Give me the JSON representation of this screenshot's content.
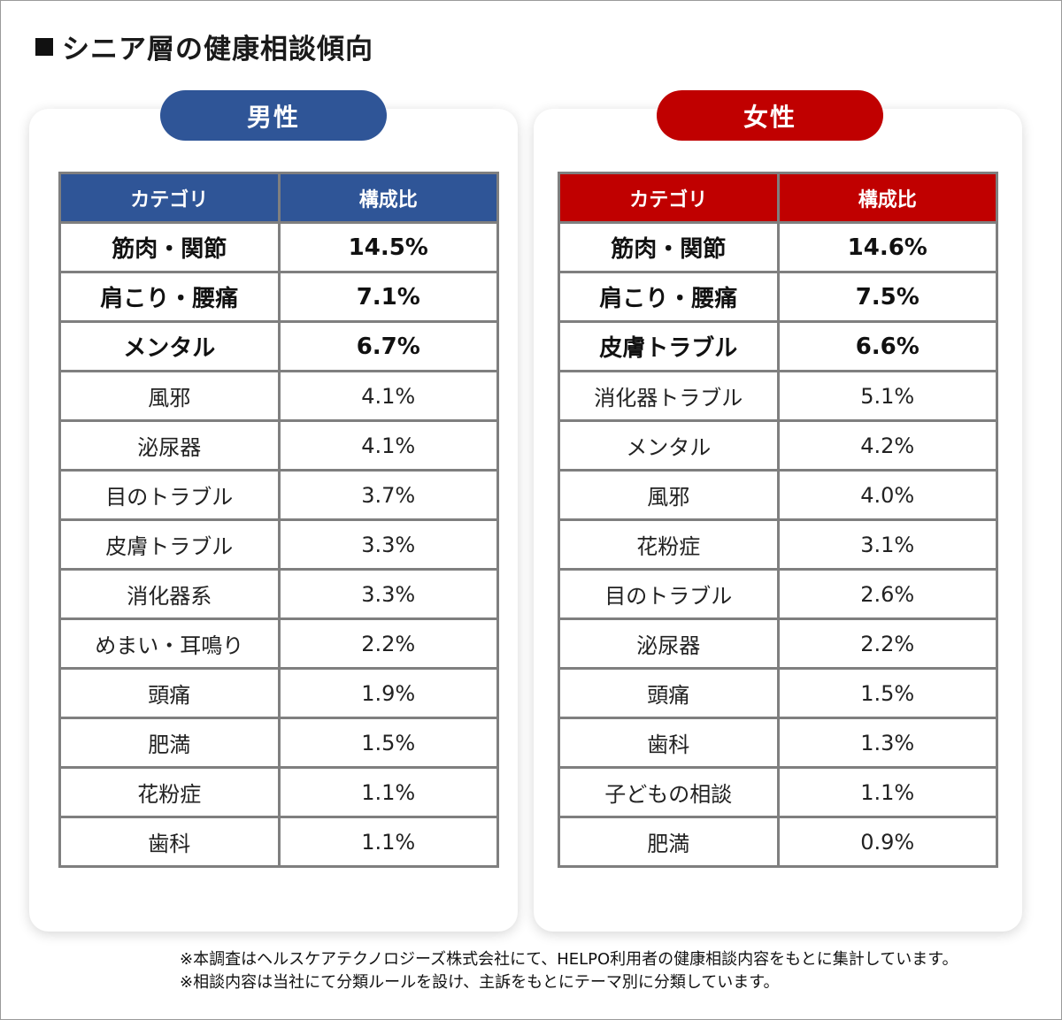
{
  "title": "シニア層の健康相談傾向",
  "headers": {
    "category": "カテゴリ",
    "ratio": "構成比"
  },
  "male": {
    "label": "男性",
    "rows": [
      {
        "category": "筋肉・関節",
        "value": "14.5%",
        "bold": true
      },
      {
        "category": "肩こり・腰痛",
        "value": "7.1%",
        "bold": true
      },
      {
        "category": "メンタル",
        "value": "6.7%",
        "bold": true
      },
      {
        "category": "風邪",
        "value": "4.1%",
        "bold": false
      },
      {
        "category": "泌尿器",
        "value": "4.1%",
        "bold": false
      },
      {
        "category": "目のトラブル",
        "value": "3.7%",
        "bold": false
      },
      {
        "category": "皮膚トラブル",
        "value": "3.3%",
        "bold": false
      },
      {
        "category": "消化器系",
        "value": "3.3%",
        "bold": false
      },
      {
        "category": "めまい・耳鳴り",
        "value": "2.2%",
        "bold": false
      },
      {
        "category": "頭痛",
        "value": "1.9%",
        "bold": false
      },
      {
        "category": "肥満",
        "value": "1.5%",
        "bold": false
      },
      {
        "category": "花粉症",
        "value": "1.1%",
        "bold": false
      },
      {
        "category": "歯科",
        "value": "1.1%",
        "bold": false
      }
    ]
  },
  "female": {
    "label": "女性",
    "rows": [
      {
        "category": "筋肉・関節",
        "value": "14.6%",
        "bold": true
      },
      {
        "category": "肩こり・腰痛",
        "value": "7.5%",
        "bold": true
      },
      {
        "category": "皮膚トラブル",
        "value": "6.6%",
        "bold": true
      },
      {
        "category": "消化器トラブル",
        "value": "5.1%",
        "bold": false
      },
      {
        "category": "メンタル",
        "value": "4.2%",
        "bold": false
      },
      {
        "category": "風邪",
        "value": "4.0%",
        "bold": false
      },
      {
        "category": "花粉症",
        "value": "3.1%",
        "bold": false
      },
      {
        "category": "目のトラブル",
        "value": "2.6%",
        "bold": false
      },
      {
        "category": "泌尿器",
        "value": "2.2%",
        "bold": false
      },
      {
        "category": "頭痛",
        "value": "1.5%",
        "bold": false
      },
      {
        "category": "歯科",
        "value": "1.3%",
        "bold": false
      },
      {
        "category": "子どもの相談",
        "value": "1.1%",
        "bold": false
      },
      {
        "category": "肥満",
        "value": "0.9%",
        "bold": false
      }
    ]
  },
  "notes": [
    "※本調査はヘルスケアテクノロジーズ株式会社にて、HELPO利用者の健康相談内容をもとに集計しています。",
    "※相談内容は当社にて分類ルールを設け、主訴をもとにテーマ別に分類しています。"
  ],
  "colors": {
    "male": "#2f5597",
    "female": "#c00000"
  }
}
